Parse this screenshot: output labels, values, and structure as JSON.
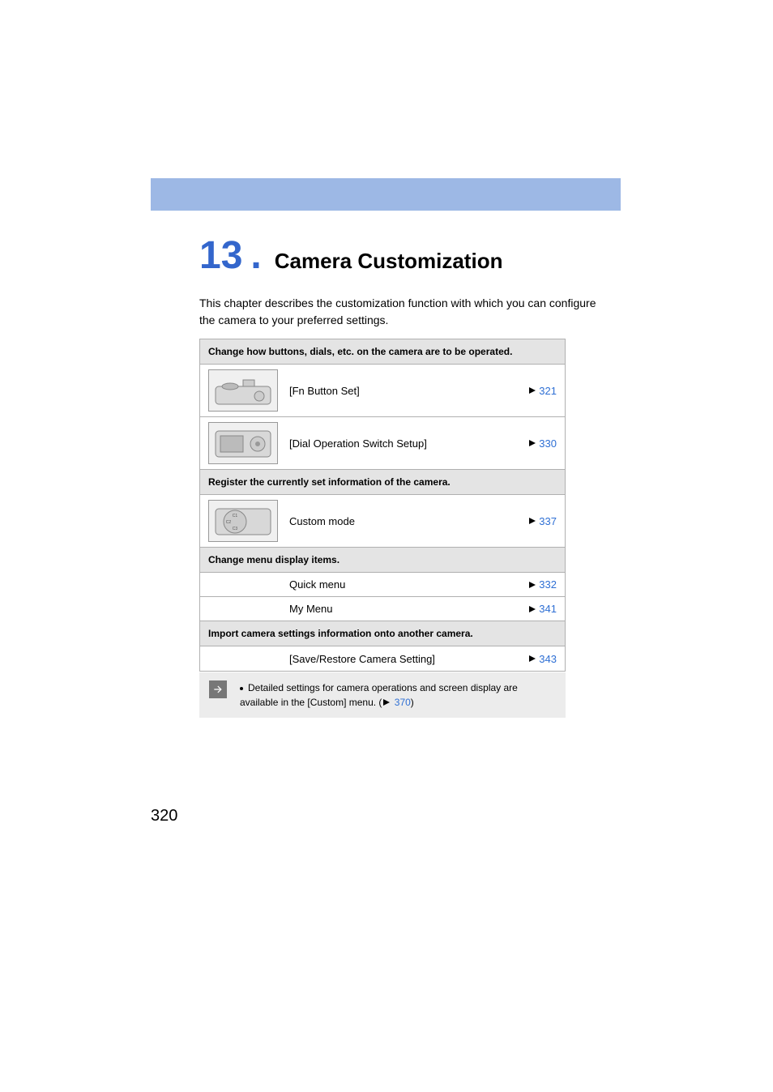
{
  "header": {
    "bar_color": "#9db8e5",
    "chapter_number": "13",
    "chapter_dot": ".",
    "chapter_title": "Camera Customization",
    "number_color": "#3366cc",
    "title_fontsize": 26,
    "number_fontsize": 48
  },
  "intro": {
    "text": "This chapter describes the customization function with which you can configure the camera to your preferred settings.",
    "fontsize": 14
  },
  "table": {
    "border_color": "#b0b0b0",
    "header_bg": "#e4e4e4",
    "link_color": "#2e6fd4",
    "sections": [
      {
        "header": "Change how buttons, dials, etc. on the camera are to be operated.",
        "rows": [
          {
            "has_thumb": true,
            "thumb_kind": "camera-top",
            "label": "[Fn Button Set]",
            "page": "321"
          },
          {
            "has_thumb": true,
            "thumb_kind": "camera-back",
            "label": "[Dial Operation Switch Setup]",
            "page": "330"
          }
        ]
      },
      {
        "header": "Register the currently set information of the camera.",
        "rows": [
          {
            "has_thumb": true,
            "thumb_kind": "mode-dial",
            "label": "Custom mode",
            "page": "337"
          }
        ]
      },
      {
        "header": "Change menu display items.",
        "rows": [
          {
            "has_thumb": false,
            "label": "Quick menu",
            "page": "332"
          },
          {
            "has_thumb": false,
            "label": "My Menu",
            "page": "341"
          }
        ]
      },
      {
        "header": "Import camera settings information onto another camera.",
        "rows": [
          {
            "has_thumb": false,
            "label": "[Save/Restore Camera Setting]",
            "page": "343"
          }
        ]
      }
    ]
  },
  "note": {
    "bg_color": "#ececec",
    "icon_bg": "#777777",
    "text_before": "Detailed settings for camera operations and screen display are available in the [Custom] menu. (",
    "link_page": "370",
    "text_after": ")",
    "fontsize": 12
  },
  "page_number": "320"
}
